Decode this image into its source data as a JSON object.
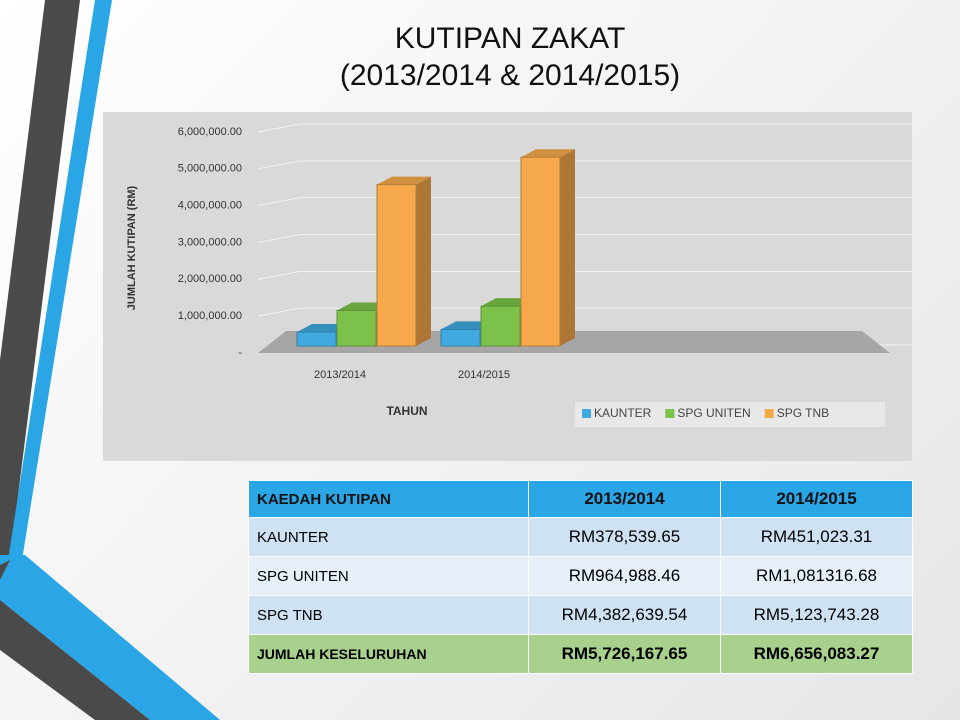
{
  "slide": {
    "title": "KUTIPAN ZAKAT",
    "subtitle": "(2013/2014  &  2014/2015)"
  },
  "chart_data": {
    "type": "bar3d",
    "y_label": "JUMLAH KUTIPAN (RM)",
    "x_label": "TAHUN",
    "categories": [
      "2013/2014",
      "2014/2015"
    ],
    "series": [
      {
        "name": "KAUNTER",
        "color": "#3fa9e0",
        "values": [
          378539.65,
          451023.31
        ]
      },
      {
        "name": "SPG UNITEN",
        "color": "#7cc24a",
        "values": [
          964988.46,
          1081316.68
        ]
      },
      {
        "name": "SPG TNB",
        "color": "#f5a94a",
        "values": [
          4382639.54,
          5123743.28
        ]
      }
    ],
    "ylim": [
      0,
      6000000
    ],
    "yticks": [
      {
        "value": 0,
        "label": "-"
      },
      {
        "value": 1000000,
        "label": "1,000,000.00"
      },
      {
        "value": 2000000,
        "label": "2,000,000.00"
      },
      {
        "value": 3000000,
        "label": "3,000,000.00"
      },
      {
        "value": 4000000,
        "label": "4,000,000.00"
      },
      {
        "value": 5000000,
        "label": "5,000,000.00"
      },
      {
        "value": 6000000,
        "label": "6,000,000.00"
      }
    ],
    "grid": true,
    "legend": "bottom-right"
  },
  "table": {
    "header": [
      "KAEDAH KUTIPAN",
      "2013/2014",
      "2014/2015"
    ],
    "rows": [
      [
        "KAUNTER",
        "RM378,539.65",
        "RM451,023.31"
      ],
      [
        "SPG UNITEN",
        "RM964,988.46",
        "RM1,081316.68"
      ],
      [
        "SPG TNB",
        "RM4,382,639.54",
        "RM5,123,743.28"
      ],
      [
        "JUMLAH KESELURUHAN",
        "RM5,726,167.65",
        "RM6,656,083.27"
      ]
    ]
  }
}
